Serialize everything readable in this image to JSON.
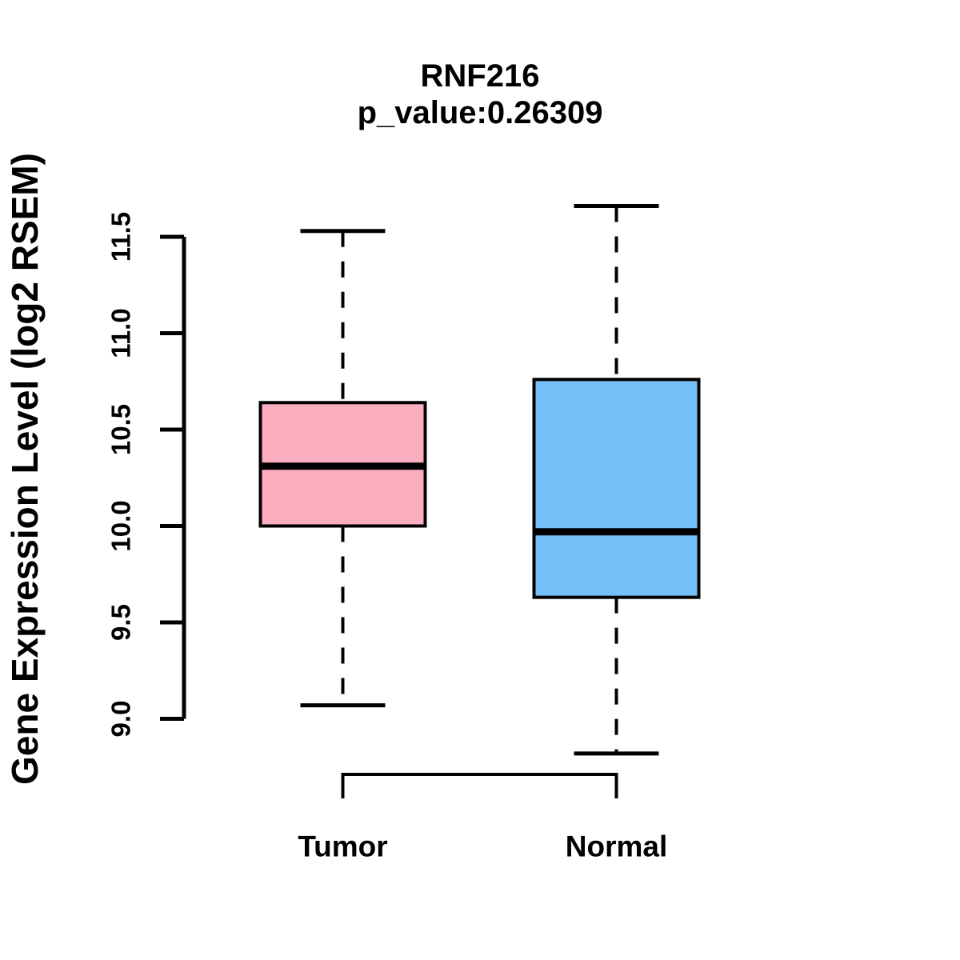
{
  "chart_data": {
    "type": "box",
    "title": "RNF216",
    "subtitle": "p_value:0.26309",
    "ylabel": "Gene Expression Level (log2 RSEM)",
    "xlabel": "",
    "categories": [
      "Tumor",
      "Normal"
    ],
    "ylim": [
      8.7,
      11.75
    ],
    "yticks": [
      {
        "value": 9.0,
        "label": "9.0"
      },
      {
        "value": 9.5,
        "label": "9.5"
      },
      {
        "value": 10.0,
        "label": "10.0"
      },
      {
        "value": 10.5,
        "label": "10.5"
      },
      {
        "value": 11.0,
        "label": "11.0"
      },
      {
        "value": 11.5,
        "label": "11.5"
      }
    ],
    "grid": false,
    "legend_position": "none",
    "boxes": [
      {
        "category": "Tumor",
        "color": "#FCAEC0",
        "border_color": "#000000",
        "whisker_low": 9.07,
        "q1": 10.0,
        "median": 10.31,
        "q3": 10.64,
        "whisker_high": 11.53
      },
      {
        "category": "Normal",
        "color": "#75BFF8",
        "border_color": "#000000",
        "whisker_low": 8.82,
        "q1": 9.63,
        "median": 9.97,
        "q3": 10.76,
        "whisker_high": 11.66
      }
    ]
  }
}
